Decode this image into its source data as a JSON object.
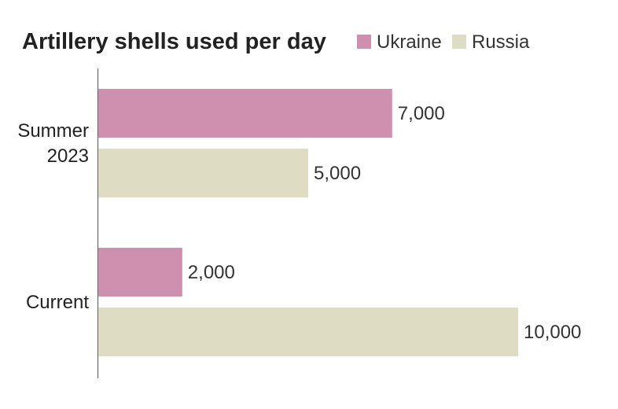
{
  "chart_data": {
    "type": "bar",
    "orientation": "horizontal",
    "title": "Artillery shells used per day",
    "categories": [
      "Summer 2023",
      "Current"
    ],
    "category_lines": [
      [
        "Summer",
        "2023"
      ],
      [
        "Current"
      ]
    ],
    "series": [
      {
        "name": "Ukraine",
        "color": "#cf90b0",
        "values": [
          7000,
          2000
        ],
        "labels": [
          "7,000",
          "2,000"
        ]
      },
      {
        "name": "Russia",
        "color": "#deddc3",
        "values": [
          5000,
          10000
        ],
        "labels": [
          "5,000",
          "10,000"
        ]
      }
    ],
    "xlim": [
      0,
      10000
    ],
    "grid": false,
    "legend_position": "top-right"
  }
}
